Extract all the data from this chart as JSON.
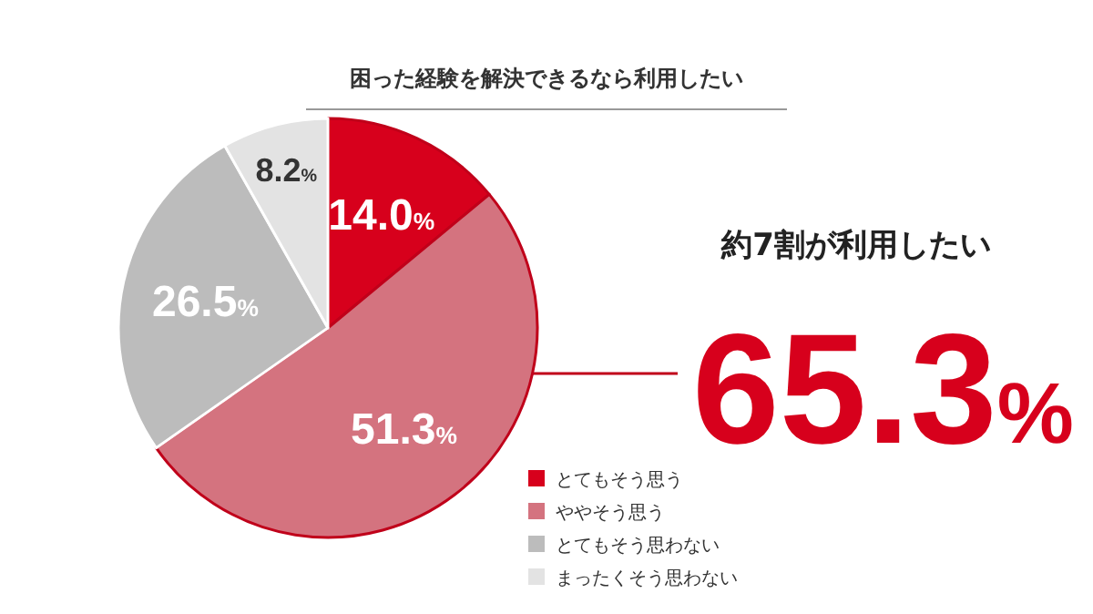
{
  "chart_data": {
    "type": "pie",
    "title": "困った経験を解決できるなら利用したい",
    "categories": [
      "とてもそう思う",
      "ややそう思う",
      "とてもそう思わない",
      "まったくそう思わない"
    ],
    "values": [
      14.0,
      51.3,
      26.5,
      8.2
    ],
    "colors": [
      "#d7001c",
      "#d4737f",
      "#bcbcbc",
      "#e3e3e3"
    ],
    "value_labels": [
      "14.0%",
      "51.3%",
      "26.5%",
      "8.2%"
    ],
    "legend": "bottom right",
    "annotations": [
      "約7割が利用したい",
      "65.3%"
    ]
  }
}
